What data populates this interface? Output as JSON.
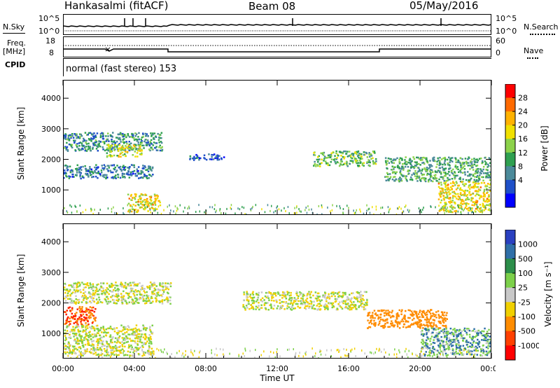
{
  "header": {
    "station": "Hankasalmi (fitACF)",
    "beam": "Beam 08",
    "date": "05/May/2016"
  },
  "side_labels": {
    "nsky": "N.Sky",
    "nsearch": "N.Search",
    "freq_a": "Freq.",
    "freq_b": "[MHz]",
    "cpid": "CPID",
    "nave": "Nave"
  },
  "mini_ticks": {
    "noise_left_top": "10^5",
    "noise_left_bottom": "10^0",
    "noise_right_top": "10^5",
    "noise_right_bottom": "10^0",
    "freq_left_top": "18",
    "freq_left_bottom": "8",
    "nave_right_top": "60",
    "nave_right_bottom": "0"
  },
  "cpid_text": "normal (fast stereo) 153",
  "power_colorbar": {
    "label": "Power [dB]",
    "ticks": [
      "28",
      "24",
      "20",
      "16",
      "12",
      "8",
      "4"
    ],
    "colors": [
      "#ff0000",
      "#ff6a00",
      "#ffb200",
      "#f0e000",
      "#8cd24a",
      "#2fa050",
      "#4b8a9a",
      "#1f50c8",
      "#0000ff"
    ]
  },
  "velocity_colorbar": {
    "label": "Velocity [m s⁻¹]",
    "ticks": [
      "1000",
      "500",
      "100",
      "25",
      "-25",
      "-100",
      "-500",
      "-1000"
    ],
    "colors": [
      "#2a40c0",
      "#2f6fa8",
      "#2c8e4a",
      "#7cd04a",
      "#c8c8c8",
      "#f0d000",
      "#ff8c00",
      "#ff4000",
      "#ff0000"
    ]
  },
  "chart_data": [
    {
      "type": "heatmap",
      "ylabel": "Slant Range [km]",
      "xlabel": "",
      "y_ticks": [
        "1000",
        "2000",
        "3000",
        "4000"
      ],
      "ylim": [
        180,
        4600
      ],
      "x_ticks": [
        "00:00",
        "04:00",
        "08:00",
        "12:00",
        "16:00",
        "20:00",
        "00:00"
      ],
      "regions": [
        {
          "t0": 0.0,
          "t1": 5.6,
          "r0": 2300,
          "r1": 2900,
          "power": 12
        },
        {
          "t0": 2.4,
          "t1": 4.4,
          "r0": 2100,
          "r1": 2500,
          "power": 20
        },
        {
          "t0": 0.0,
          "t1": 5.0,
          "r0": 1400,
          "r1": 1850,
          "power": 10
        },
        {
          "t0": 3.6,
          "t1": 5.4,
          "r0": 300,
          "r1": 900,
          "power": 22
        },
        {
          "t0": 7.0,
          "t1": 9.0,
          "r0": 2000,
          "r1": 2200,
          "power": 8
        },
        {
          "t0": 14.0,
          "t1": 17.5,
          "r0": 1800,
          "r1": 2300,
          "power": 16
        },
        {
          "t0": 18.0,
          "t1": 24.0,
          "r0": 1300,
          "r1": 2100,
          "power": 14
        },
        {
          "t0": 21.0,
          "t1": 24.0,
          "r0": 300,
          "r1": 1300,
          "power": 22
        }
      ]
    },
    {
      "type": "heatmap",
      "ylabel": "Slant Range [km]",
      "xlabel": "Time UT",
      "y_ticks": [
        "1000",
        "2000",
        "3000",
        "4000"
      ],
      "ylim": [
        180,
        4600
      ],
      "x_ticks": [
        "00:00",
        "04:00",
        "08:00",
        "12:00",
        "16:00",
        "20:00",
        "00:00"
      ],
      "regions": [
        {
          "t0": 0.0,
          "t1": 6.0,
          "r0": 2000,
          "r1": 2700,
          "velocity": 0
        },
        {
          "t0": 0.0,
          "t1": 1.8,
          "r0": 1300,
          "r1": 1900,
          "velocity": -500
        },
        {
          "t0": 0.0,
          "t1": 5.0,
          "r0": 300,
          "r1": 1300,
          "velocity": 0
        },
        {
          "t0": 10.0,
          "t1": 17.0,
          "r0": 1800,
          "r1": 2400,
          "velocity": 0
        },
        {
          "t0": 17.0,
          "t1": 21.5,
          "r0": 1200,
          "r1": 1800,
          "velocity": -300
        },
        {
          "t0": 20.0,
          "t1": 24.0,
          "r0": 300,
          "r1": 1200,
          "velocity": 100
        }
      ]
    }
  ]
}
